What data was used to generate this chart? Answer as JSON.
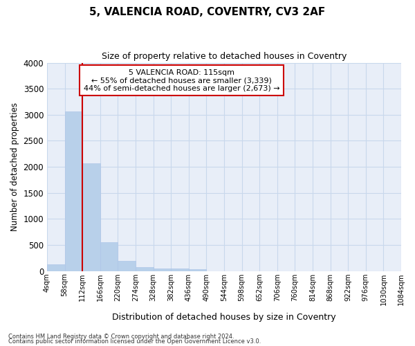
{
  "title": "5, VALENCIA ROAD, COVENTRY, CV3 2AF",
  "subtitle": "Size of property relative to detached houses in Coventry",
  "xlabel": "Distribution of detached houses by size in Coventry",
  "ylabel": "Number of detached properties",
  "footer_line1": "Contains HM Land Registry data © Crown copyright and database right 2024.",
  "footer_line2": "Contains public sector information licensed under the Open Government Licence v3.0.",
  "annotation_title": "5 VALENCIA ROAD: 115sqm",
  "annotation_line1": "← 55% of detached houses are smaller (3,339)",
  "annotation_line2": "44% of semi-detached houses are larger (2,673) →",
  "bar_edges": [
    4,
    58,
    112,
    166,
    220,
    274,
    328,
    382,
    436,
    490,
    544,
    598,
    652,
    706,
    760,
    814,
    868,
    922,
    976,
    1030,
    1084
  ],
  "bar_heights": [
    130,
    3060,
    2070,
    560,
    200,
    75,
    50,
    50,
    40,
    0,
    0,
    0,
    0,
    0,
    0,
    0,
    0,
    0,
    0,
    0
  ],
  "bar_color": "#b8d0ea",
  "bar_edgecolor": "#aec6e8",
  "vline_color": "#cc0000",
  "vline_x": 112,
  "annotation_box_color": "#ffffff",
  "annotation_box_edgecolor": "#cc0000",
  "ylim": [
    0,
    4000
  ],
  "yticks": [
    0,
    500,
    1000,
    1500,
    2000,
    2500,
    3000,
    3500,
    4000
  ],
  "grid_color": "#c8d8ec",
  "bg_color": "#e8eef8",
  "title_fontsize": 11,
  "subtitle_fontsize": 9
}
